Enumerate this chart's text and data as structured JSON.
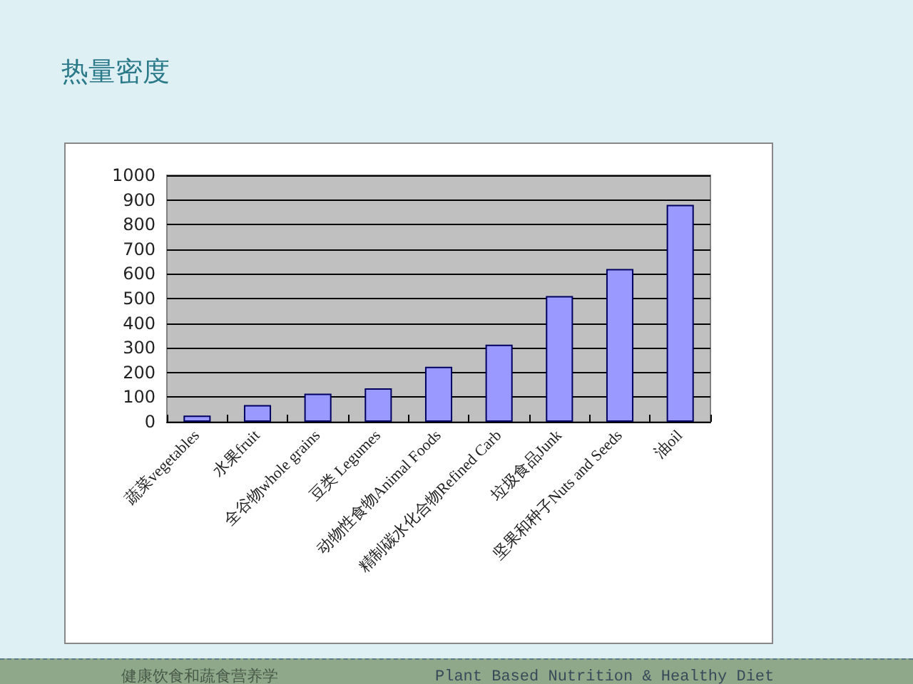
{
  "chart_data": {
    "type": "bar",
    "title": "热量密度",
    "categories": [
      "蔬菜vegetables",
      "水果fruit",
      "全谷物whole grains",
      "豆类 Legumes",
      "动物性食物Animal Foods",
      "精制碳水化合物Refined Carb",
      "垃圾食品Junk",
      "坚果和种子Nuts and Seeds",
      "油oil"
    ],
    "values": [
      25,
      68,
      114,
      136,
      223,
      313,
      510,
      620,
      880
    ],
    "color": "#9999ff",
    "ylim": [
      0,
      1000
    ],
    "yticks": [
      0,
      100,
      200,
      300,
      400,
      500,
      600,
      700,
      800,
      900,
      1000
    ],
    "grid": "y",
    "annotations": [
      "健康饮食和蔬食营养学",
      "Plant Based Nutrition & Healthy Diet"
    ]
  }
}
